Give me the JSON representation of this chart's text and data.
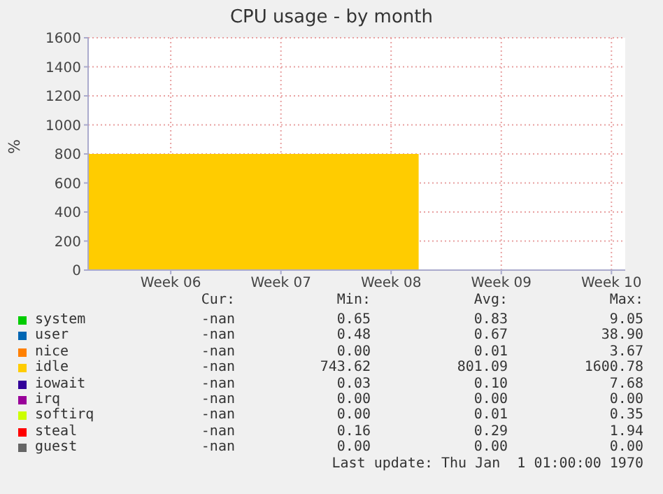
{
  "chart_data": {
    "type": "area",
    "stacked": true,
    "title": "CPU usage - by month",
    "ylabel": "%",
    "categories": [
      null,
      null,
      null,
      "Week 06",
      null,
      null,
      null,
      "Week 07",
      null,
      null,
      null,
      "Week 08",
      null,
      null,
      null,
      "Week 09",
      null,
      null,
      null,
      "Week 10"
    ],
    "ylim": [
      0,
      1600
    ],
    "yticks": [
      0,
      200,
      400,
      600,
      800,
      1000,
      1200,
      1400,
      1600
    ],
    "grid": true,
    "legend": "bottom",
    "series": [
      {
        "name": "system",
        "color": "#00cc00",
        "values": [
          null,
          null,
          null,
          null,
          null,
          null,
          null,
          null,
          null,
          null,
          null,
          null,
          null,
          null,
          null,
          null,
          null,
          null,
          null,
          null
        ]
      },
      {
        "name": "user",
        "color": "#0066b3",
        "values": [
          null,
          null,
          null,
          null,
          null,
          null,
          null,
          null,
          null,
          null,
          null,
          null,
          null,
          null,
          null,
          null,
          null,
          null,
          null,
          null
        ]
      },
      {
        "name": "nice",
        "color": "#ff8000",
        "values": [
          null,
          null,
          null,
          null,
          null,
          null,
          null,
          null,
          null,
          null,
          null,
          null,
          null,
          null,
          null,
          null,
          null,
          null,
          null,
          null
        ]
      },
      {
        "name": "idle",
        "color": "#ffcc00",
        "values": [
          800,
          800,
          800,
          800,
          800,
          800,
          800,
          800,
          800,
          800,
          800,
          800,
          800,
          null,
          null,
          null,
          null,
          null,
          null,
          null
        ]
      },
      {
        "name": "iowait",
        "color": "#330099",
        "values": [
          null,
          null,
          null,
          null,
          null,
          null,
          null,
          null,
          null,
          null,
          null,
          null,
          null,
          null,
          null,
          null,
          null,
          null,
          null,
          null
        ]
      },
      {
        "name": "irq",
        "color": "#990099",
        "values": [
          null,
          null,
          null,
          null,
          null,
          null,
          null,
          null,
          null,
          null,
          null,
          null,
          null,
          null,
          null,
          null,
          null,
          null,
          null,
          null
        ]
      },
      {
        "name": "softirq",
        "color": "#ccff00",
        "values": [
          null,
          null,
          null,
          null,
          null,
          null,
          null,
          null,
          null,
          null,
          null,
          null,
          null,
          null,
          null,
          null,
          null,
          null,
          null,
          null
        ]
      },
      {
        "name": "steal",
        "color": "#ff0000",
        "values": [
          null,
          null,
          null,
          null,
          null,
          null,
          null,
          null,
          null,
          null,
          null,
          null,
          null,
          null,
          null,
          null,
          null,
          null,
          null,
          null
        ]
      },
      {
        "name": "guest",
        "color": "#666666",
        "values": [
          null,
          null,
          null,
          null,
          null,
          null,
          null,
          null,
          null,
          null,
          null,
          null,
          null,
          null,
          null,
          null,
          null,
          null,
          null,
          null
        ]
      }
    ],
    "annotations": [
      "Cur:",
      "Min:",
      "Avg:",
      "Max:",
      "-nan",
      "0.65",
      "0.83",
      "9.05",
      "-nan",
      "0.48",
      "0.67",
      "38.90",
      "-nan",
      "0.00",
      "0.01",
      "3.67",
      "-nan",
      "743.62",
      "801.09",
      "1600.78",
      "-nan",
      "0.03",
      "0.10",
      "7.68",
      "-nan",
      "0.00",
      "0.00",
      "0.00",
      "-nan",
      "0.00",
      "0.01",
      "0.35",
      "-nan",
      "0.16",
      "0.29",
      "1.94",
      "-nan",
      "0.00",
      "0.00",
      "0.00",
      "Last update: Thu Jan  1 01:00:00 1970"
    ]
  }
}
